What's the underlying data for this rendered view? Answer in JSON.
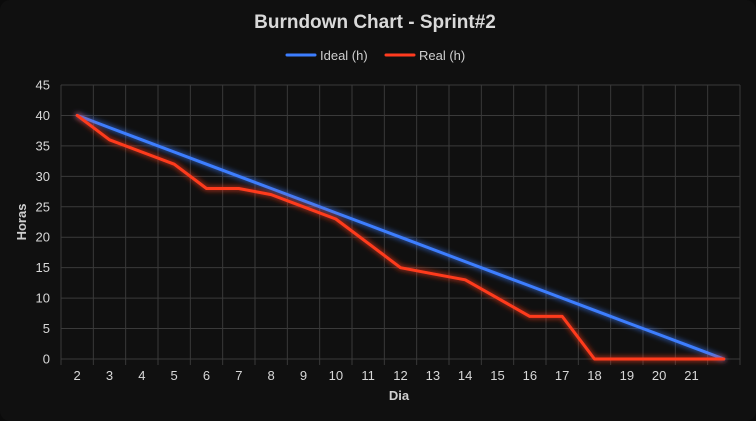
{
  "chart_data": {
    "type": "line",
    "title": "Burndown Chart - Sprint#2",
    "xlabel": "Dia",
    "ylabel": "Horas",
    "categories": [
      "2",
      "3",
      "4",
      "5",
      "6",
      "7",
      "8",
      "9",
      "10",
      "11",
      "12",
      "13",
      "14",
      "15",
      "16",
      "17",
      "18",
      "19",
      "20",
      "21",
      ""
    ],
    "ylim": [
      0,
      45
    ],
    "yticks": [
      0,
      5,
      10,
      15,
      20,
      25,
      30,
      35,
      40,
      45
    ],
    "grid": true,
    "legend_position": "top-center",
    "series": [
      {
        "name": "Ideal (h)",
        "color": "#3d7eff",
        "values": [
          40,
          38,
          36,
          34,
          32,
          30,
          28,
          26,
          24,
          22,
          20,
          18,
          16,
          14,
          12,
          10,
          8,
          6,
          4,
          2,
          0
        ]
      },
      {
        "name": "Real (h)",
        "color": "#ff3b1f",
        "values": [
          40,
          36,
          34,
          32,
          28,
          28,
          27,
          25,
          23,
          19,
          15,
          14,
          13,
          10,
          7,
          7,
          0,
          0,
          0,
          0,
          0
        ]
      }
    ]
  }
}
